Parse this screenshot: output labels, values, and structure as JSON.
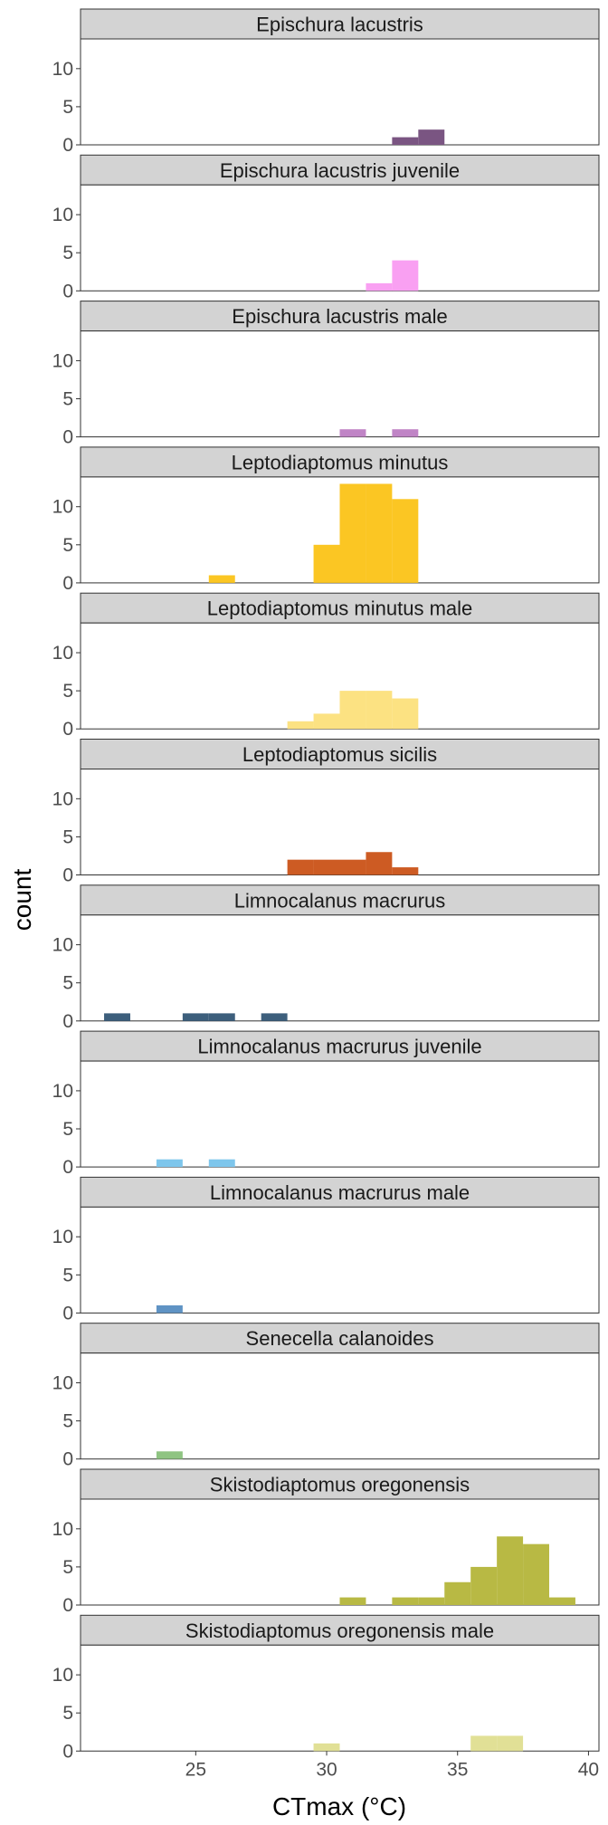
{
  "chart_data": {
    "type": "bar",
    "xlabel": "CTmax (°C)",
    "ylabel": "count",
    "xlim": [
      20.6,
      40.4
    ],
    "ylim": [
      0,
      13.9
    ],
    "bin_width": 1,
    "x_ticks": [
      25,
      30,
      35,
      40
    ],
    "y_ticks": [
      0,
      5,
      10
    ],
    "facets": [
      {
        "name": "Epischura lacustris",
        "color": "#7a5582",
        "bars": [
          {
            "x": 33,
            "count": 1
          },
          {
            "x": 34,
            "count": 2
          }
        ]
      },
      {
        "name": "Epischura lacustris juvenile",
        "color": "#f9a0f2",
        "bars": [
          {
            "x": 32,
            "count": 1
          },
          {
            "x": 33,
            "count": 4
          }
        ]
      },
      {
        "name": "Epischura lacustris male",
        "color": "#c084c6",
        "bars": [
          {
            "x": 31,
            "count": 1
          },
          {
            "x": 33,
            "count": 1
          }
        ]
      },
      {
        "name": "Leptodiaptomus minutus",
        "color": "#fbc623",
        "bars": [
          {
            "x": 26,
            "count": 1
          },
          {
            "x": 30,
            "count": 5
          },
          {
            "x": 31,
            "count": 13
          },
          {
            "x": 32,
            "count": 13
          },
          {
            "x": 33,
            "count": 11
          }
        ]
      },
      {
        "name": "Leptodiaptomus minutus male",
        "color": "#fce282",
        "bars": [
          {
            "x": 29,
            "count": 1
          },
          {
            "x": 30,
            "count": 2
          },
          {
            "x": 31,
            "count": 5
          },
          {
            "x": 32,
            "count": 5
          },
          {
            "x": 33,
            "count": 4
          }
        ]
      },
      {
        "name": "Leptodiaptomus sicilis",
        "color": "#cd5b23",
        "bars": [
          {
            "x": 29,
            "count": 2
          },
          {
            "x": 30,
            "count": 2
          },
          {
            "x": 31,
            "count": 2
          },
          {
            "x": 32,
            "count": 3
          },
          {
            "x": 33,
            "count": 1
          }
        ]
      },
      {
        "name": "Limnocalanus macrurus",
        "color": "#3d5f7c",
        "bars": [
          {
            "x": 22,
            "count": 1
          },
          {
            "x": 25,
            "count": 1
          },
          {
            "x": 26,
            "count": 1
          },
          {
            "x": 28,
            "count": 1
          }
        ]
      },
      {
        "name": "Limnocalanus macrurus juvenile",
        "color": "#7ec6ec",
        "bars": [
          {
            "x": 24,
            "count": 1
          },
          {
            "x": 26,
            "count": 1
          }
        ]
      },
      {
        "name": "Limnocalanus macrurus male",
        "color": "#5f93c4",
        "bars": [
          {
            "x": 24,
            "count": 1
          }
        ]
      },
      {
        "name": "Senecella calanoides",
        "color": "#8fc482",
        "bars": [
          {
            "x": 24,
            "count": 1
          }
        ]
      },
      {
        "name": "Skistodiaptomus oregonensis",
        "color": "#b8b944",
        "bars": [
          {
            "x": 31,
            "count": 1
          },
          {
            "x": 33,
            "count": 1
          },
          {
            "x": 34,
            "count": 1
          },
          {
            "x": 35,
            "count": 3
          },
          {
            "x": 36,
            "count": 5
          },
          {
            "x": 37,
            "count": 9
          },
          {
            "x": 38,
            "count": 8
          },
          {
            "x": 39,
            "count": 1
          }
        ]
      },
      {
        "name": "Skistodiaptomus oregonensis male",
        "color": "#e1e096",
        "bars": [
          {
            "x": 30,
            "count": 1
          },
          {
            "x": 36,
            "count": 2
          },
          {
            "x": 37,
            "count": 2
          }
        ]
      }
    ]
  }
}
